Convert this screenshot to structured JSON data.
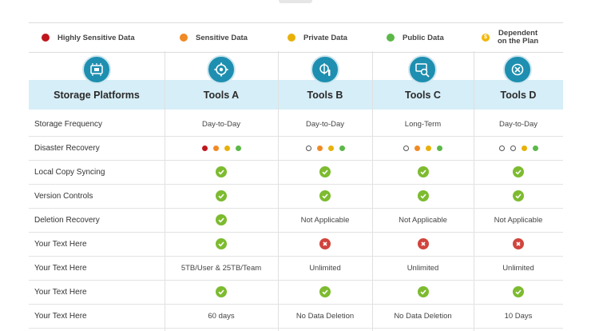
{
  "legend": [
    {
      "label": "Highly  Sensitive Data",
      "color": "#c0161d",
      "icon": "red-dot-icon"
    },
    {
      "label": "Sensitive Data",
      "color": "#f08a24",
      "icon": "orange-dot-icon"
    },
    {
      "label": "Private Data",
      "color": "#e8b10a",
      "icon": "yellow-dot-icon"
    },
    {
      "label": "Public Data",
      "color": "#5cb848",
      "icon": "green-dot-icon"
    },
    {
      "label_line1": "Dependent",
      "label_line2": "on the Plan",
      "color": "#f2b705",
      "icon": "coin-icon"
    }
  ],
  "header": {
    "first_col": "Storage Platforms",
    "tools": [
      "Tools A",
      "Tools B",
      "Tools C",
      "Tools D"
    ],
    "tool_icons": [
      "gear-head-icon",
      "tools-screwdriver-icon",
      "computer-search-icon",
      "settings-wrench-icon"
    ]
  },
  "rows": [
    {
      "label": "Storage Frequency",
      "cells": [
        "Day-to-Day",
        "Day-to-Day",
        "Long-Term",
        "Day-to-Day"
      ]
    },
    {
      "label": "Disaster Recovery",
      "cells": [
        "dots:red,orange,yellow,green",
        "dots:empty,orange,yellow,green",
        "dots:empty,orange,yellow,green",
        "dots:empty,empty,yellow,green"
      ]
    },
    {
      "label": "Local Copy Syncing",
      "cells": [
        "check",
        "check",
        "check",
        "check"
      ]
    },
    {
      "label": "Version Controls",
      "cells": [
        "check",
        "check",
        "check",
        "check"
      ]
    },
    {
      "label": "Deletion Recovery",
      "cells": [
        "check",
        "Not Applicable",
        "Not Applicable",
        "Not Applicable"
      ]
    },
    {
      "label": "Your Text Here",
      "cells": [
        "check",
        "cross",
        "cross",
        "cross"
      ]
    },
    {
      "label": "Your Text Here",
      "cells": [
        "5TB/User & 25TB/Team",
        "Unlimited",
        "Unlimited",
        "Unlimited"
      ]
    },
    {
      "label": "Your Text Here",
      "cells": [
        "check",
        "check",
        "check",
        "check"
      ]
    },
    {
      "label": "Your Text Here",
      "cells": [
        "60 days",
        "No Data Deletion",
        "No Data Deletion",
        "10 Days"
      ]
    }
  ],
  "colors": {
    "accent": "#1e8fb0",
    "header_band": "#d6eef7",
    "check": "#7dbb2f",
    "cross": "#d0453d"
  }
}
